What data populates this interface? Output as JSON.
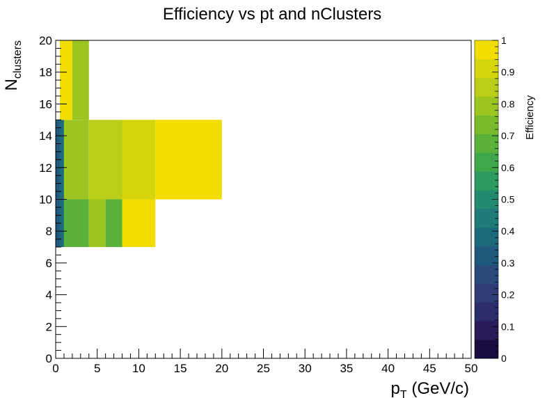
{
  "chart_data": {
    "type": "heatmap",
    "title": "Efficiency vs pt and nClusters",
    "xlabel": {
      "main": "p",
      "sub": "T",
      "rest": " (GeV/c)"
    },
    "ylabel": {
      "main": "N",
      "sub": "clusters"
    },
    "zlabel": "Efficiency",
    "xlim": [
      0,
      50
    ],
    "ylim": [
      0,
      20
    ],
    "zlim": [
      0,
      1
    ],
    "x_ticks": [
      "0",
      "5",
      "10",
      "15",
      "20",
      "25",
      "30",
      "35",
      "40",
      "45",
      "50"
    ],
    "y_ticks": [
      "0",
      "2",
      "4",
      "6",
      "8",
      "10",
      "12",
      "14",
      "16",
      "18",
      "20"
    ],
    "z_ticks": [
      "0",
      "0.1",
      "0.2",
      "0.3",
      "0.4",
      "0.5",
      "0.6",
      "0.7",
      "0.8",
      "0.9",
      "1"
    ],
    "grid": false,
    "colormap": [
      "#190c3f",
      "#2a1a58",
      "#2d2d6c",
      "#2e3b75",
      "#2a4a7a",
      "#1f5a7c",
      "#1d6a7c",
      "#1f7a78",
      "#228a6f",
      "#2d9a5f",
      "#40a64a",
      "#5ab23a",
      "#7abb2c",
      "#9bc521",
      "#bacd18",
      "#d6d40c",
      "#f2dd00"
    ],
    "cells": [
      {
        "x": [
          0,
          0.5
        ],
        "y": [
          7,
          10
        ],
        "z": 0.35
      },
      {
        "x": [
          0.5,
          1
        ],
        "y": [
          7,
          10
        ],
        "z": 0.4
      },
      {
        "x": [
          1,
          4
        ],
        "y": [
          7,
          10
        ],
        "z": 0.7
      },
      {
        "x": [
          4,
          6
        ],
        "y": [
          7,
          10
        ],
        "z": 0.8
      },
      {
        "x": [
          6,
          8
        ],
        "y": [
          7,
          10
        ],
        "z": 0.7
      },
      {
        "x": [
          8,
          12
        ],
        "y": [
          7,
          10
        ],
        "z": 1.0
      },
      {
        "x": [
          0,
          0.5
        ],
        "y": [
          10,
          15
        ],
        "z": 0.35
      },
      {
        "x": [
          0.5,
          1
        ],
        "y": [
          10,
          15
        ],
        "z": 0.4
      },
      {
        "x": [
          1,
          4
        ],
        "y": [
          10,
          15
        ],
        "z": 0.82
      },
      {
        "x": [
          4,
          8
        ],
        "y": [
          10,
          15
        ],
        "z": 0.88
      },
      {
        "x": [
          8,
          12
        ],
        "y": [
          10,
          15
        ],
        "z": 0.94
      },
      {
        "x": [
          12,
          20
        ],
        "y": [
          10,
          15
        ],
        "z": 1.0
      },
      {
        "x": [
          0.5,
          2
        ],
        "y": [
          15,
          20
        ],
        "z": 1.0
      },
      {
        "x": [
          2,
          4
        ],
        "y": [
          15,
          20
        ],
        "z": 0.78
      }
    ]
  }
}
